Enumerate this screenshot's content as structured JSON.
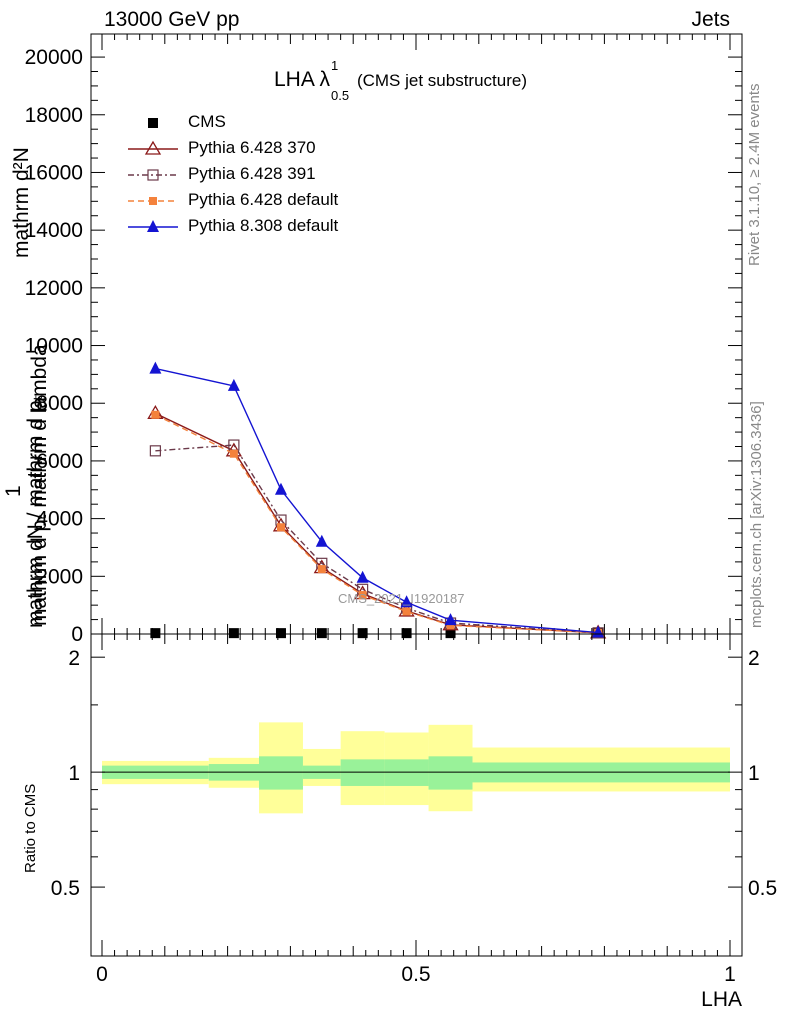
{
  "header": {
    "left": "13000 GeV pp",
    "right": "Jets"
  },
  "side": {
    "rivet": "Rivet 3.1.10, ≥ 2.4M events",
    "mcplots": "mcplots.cern.ch [arXiv:1306.3436]"
  },
  "watermark": "CMS_2021_I1920187",
  "chart_data": [
    {
      "type": "line",
      "title": "LHA λ¹₀.₅ (CMS jet substructure)",
      "title_main": "LHA λ",
      "title_sup": "1",
      "title_sub": "0.5",
      "title_rest": "(CMS jet substructure)",
      "ylabel": "1 / mathrm dN / mathrm d p_T mathrm d^2N / mathrm d p_T mathrm d lambda",
      "ylabel_numerator_top": "mathrm d²N",
      "ylabel_numerator_bottom": "mathrm d pₜ mathrm d lambda",
      "ylabel_one": "1",
      "ylabel_denominator": "mathrm dN / mathrm d pₜ",
      "xlim": [
        0,
        1
      ],
      "ylim": [
        0,
        20800
      ],
      "yticks": [
        0,
        2000,
        4000,
        6000,
        8000,
        10000,
        12000,
        14000,
        16000,
        18000,
        20000
      ],
      "ytick_labels": [
        "0",
        "2000",
        "4000",
        "6000",
        "8000",
        "10000",
        "12000",
        "14000",
        "16000",
        "18000",
        "20000"
      ],
      "legend_position": "top-left",
      "x": [
        0.085,
        0.21,
        0.285,
        0.35,
        0.415,
        0.485,
        0.555,
        0.79
      ],
      "series": [
        {
          "name": "CMS",
          "color": "#000000",
          "marker": "square-filled",
          "dash": "",
          "values": [
            30,
            30,
            30,
            30,
            30,
            30,
            30,
            30
          ]
        },
        {
          "name": "Pythia 6.428 370",
          "color": "#8b1a1a",
          "marker": "triangle-open",
          "dash": "",
          "values": [
            7650,
            6350,
            3750,
            2300,
            1400,
            800,
            320,
            40
          ]
        },
        {
          "name": "Pythia 6.428 391",
          "color": "#6b3a4a",
          "marker": "square-open",
          "dash": "6,3,2,3",
          "values": [
            6350,
            6550,
            3950,
            2450,
            1550,
            900,
            380,
            40
          ]
        },
        {
          "name": "Pythia 6.428 default",
          "color": "#f4823c",
          "marker": "square-filled-small",
          "dash": "6,4",
          "values": [
            7600,
            6250,
            3700,
            2250,
            1350,
            780,
            300,
            40
          ]
        },
        {
          "name": "Pythia 8.308 default",
          "color": "#1414d2",
          "marker": "triangle-filled",
          "dash": "",
          "values": [
            9200,
            8600,
            5000,
            3200,
            1950,
            1100,
            480,
            50
          ]
        }
      ]
    },
    {
      "type": "area",
      "ylabel": "Ratio to CMS",
      "xlabel": "LHA",
      "xlim": [
        0,
        1
      ],
      "ylim": [
        0.33,
        2.3
      ],
      "yticks": [
        0.5,
        1,
        2
      ],
      "ytick_labels": [
        "0.5",
        "1",
        "2"
      ],
      "xticks": [
        0,
        0.5,
        1
      ],
      "xtick_labels": [
        "0",
        "0.5",
        "1"
      ],
      "reference": 1,
      "bins": [
        {
          "lo": 0.0,
          "hi": 0.17,
          "inner": [
            0.96,
            1.04
          ],
          "outer": [
            0.93,
            1.07
          ]
        },
        {
          "lo": 0.17,
          "hi": 0.25,
          "inner": [
            0.95,
            1.05
          ],
          "outer": [
            0.91,
            1.09
          ]
        },
        {
          "lo": 0.25,
          "hi": 0.32,
          "inner": [
            0.9,
            1.1
          ],
          "outer": [
            0.78,
            1.35
          ]
        },
        {
          "lo": 0.32,
          "hi": 0.38,
          "inner": [
            0.96,
            1.04
          ],
          "outer": [
            0.92,
            1.15
          ]
        },
        {
          "lo": 0.38,
          "hi": 0.45,
          "inner": [
            0.92,
            1.08
          ],
          "outer": [
            0.82,
            1.28
          ]
        },
        {
          "lo": 0.45,
          "hi": 0.52,
          "inner": [
            0.92,
            1.08
          ],
          "outer": [
            0.82,
            1.27
          ]
        },
        {
          "lo": 0.52,
          "hi": 0.59,
          "inner": [
            0.9,
            1.1
          ],
          "outer": [
            0.79,
            1.33
          ]
        },
        {
          "lo": 0.59,
          "hi": 1.0,
          "inner": [
            0.94,
            1.06
          ],
          "outer": [
            0.89,
            1.16
          ]
        }
      ],
      "colors": {
        "inner": "#99f299",
        "outer": "#ffff99"
      }
    }
  ]
}
